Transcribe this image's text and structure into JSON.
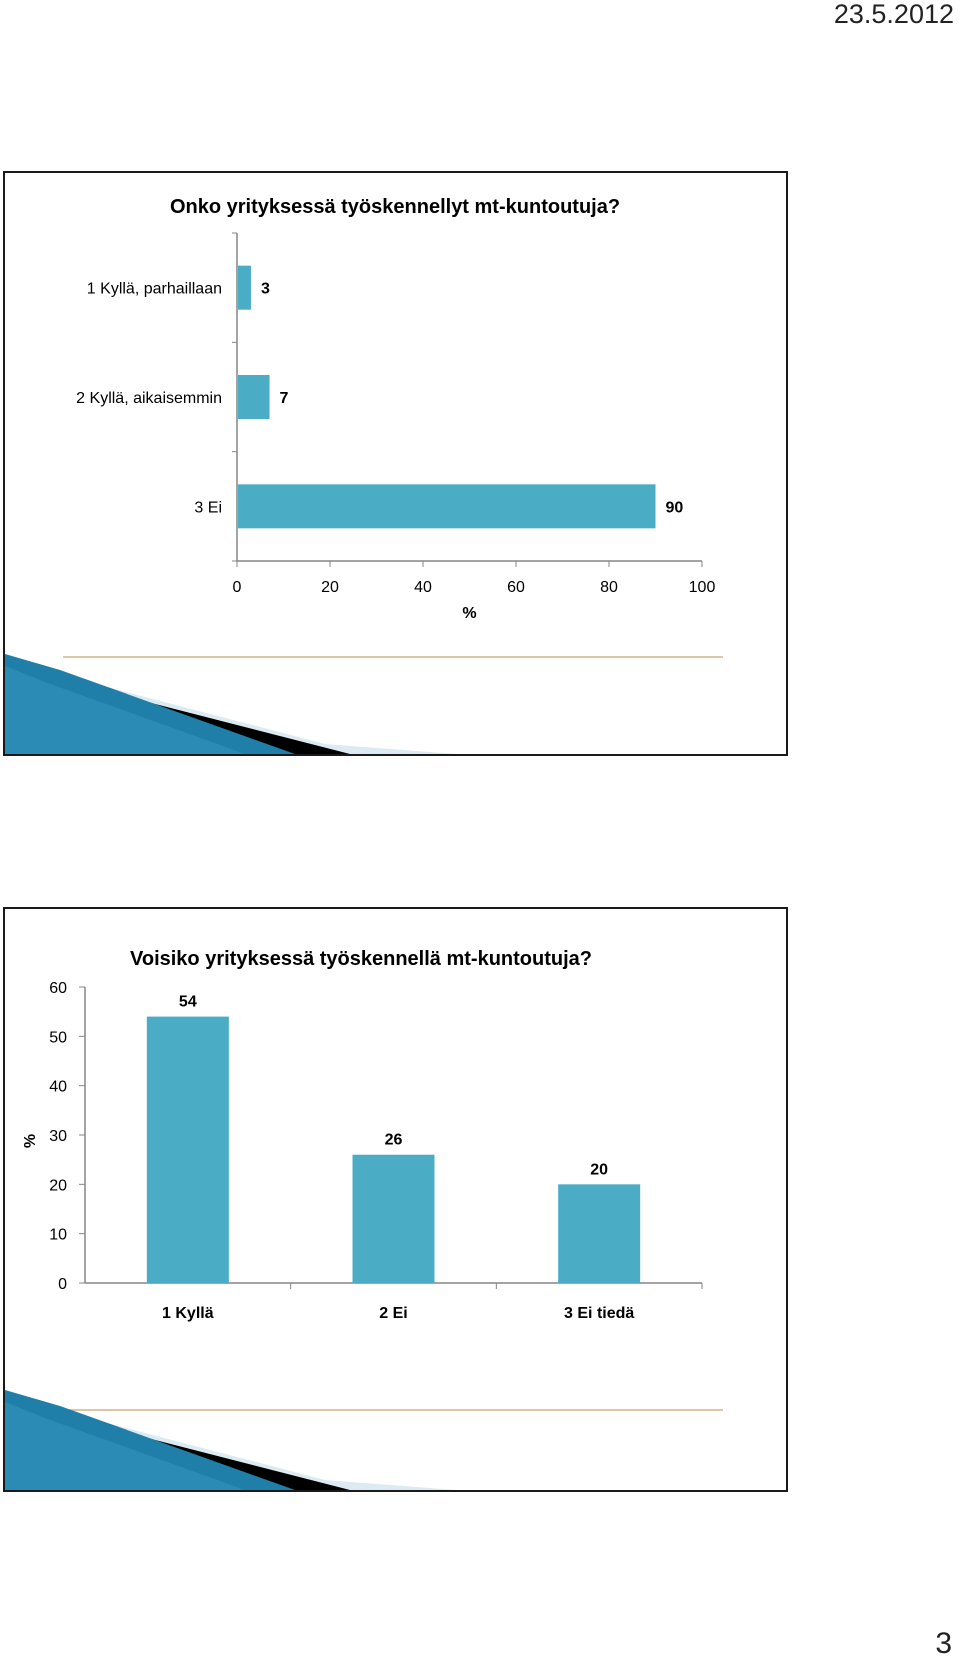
{
  "header": {
    "date": "23.5.2012"
  },
  "footer": {
    "page_number": "3"
  },
  "colors": {
    "bar": "#4BACC6",
    "axis": "#868686",
    "divider": "#D2B48C"
  },
  "chart_data": [
    {
      "type": "bar",
      "orientation": "horizontal",
      "title": "Onko yrityksessä työskennellyt mt-kuntoutuja?",
      "categories": [
        "1 Kyllä, parhaillaan",
        "2 Kyllä, aikaisemmin",
        "3 Ei"
      ],
      "values": [
        3,
        7,
        90
      ],
      "data_labels": [
        "3",
        "7",
        "90"
      ],
      "xlabel": "%",
      "ylabel": "",
      "xlim": [
        0,
        100
      ],
      "x_ticks": [
        "0",
        "20",
        "40",
        "60",
        "80",
        "100"
      ],
      "grid": false,
      "legend": "none"
    },
    {
      "type": "bar",
      "orientation": "vertical",
      "title": "Voisiko yrityksessä työskennellä mt-kuntoutuja?",
      "categories": [
        "1 Kyllä",
        "2 Ei",
        "3 Ei tiedä"
      ],
      "values": [
        54,
        26,
        20
      ],
      "data_labels": [
        "54",
        "26",
        "20"
      ],
      "xlabel": "",
      "ylabel": "%",
      "ylim": [
        0,
        60
      ],
      "y_ticks": [
        "0",
        "10",
        "20",
        "30",
        "40",
        "50",
        "60"
      ],
      "grid": false,
      "legend": "none"
    }
  ]
}
